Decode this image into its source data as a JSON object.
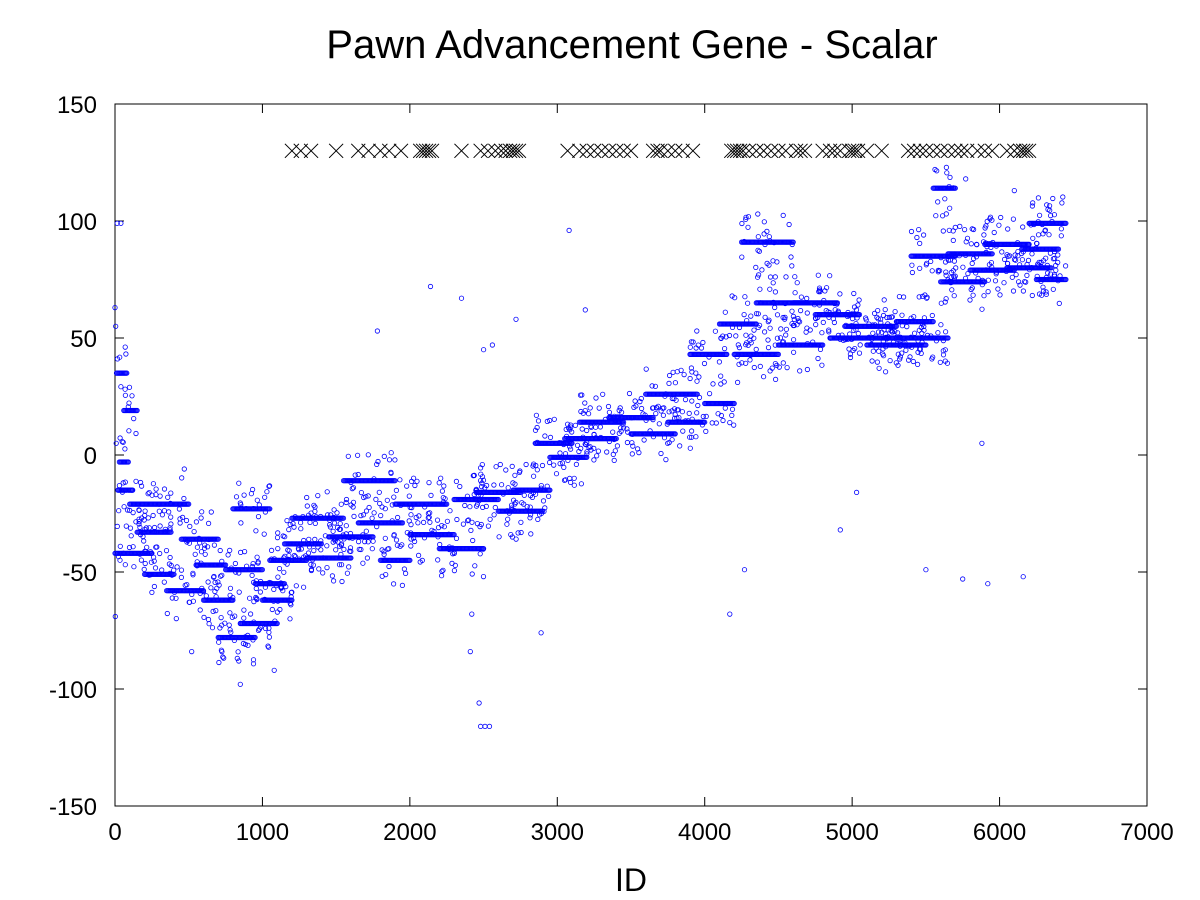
{
  "chart_data": {
    "type": "scatter",
    "title": "Pawn Advancement Gene - Scalar",
    "xlabel": "ID",
    "ylabel": "",
    "xlim": [
      0,
      7000
    ],
    "ylim": [
      -150,
      150
    ],
    "xticks": [
      0,
      1000,
      2000,
      3000,
      4000,
      5000,
      6000,
      7000
    ],
    "yticks": [
      -150,
      -100,
      -50,
      0,
      50,
      100,
      150
    ],
    "xtick_labels": [
      "0",
      "1000",
      "2000",
      "3000",
      "4000",
      "5000",
      "6000",
      "7000"
    ],
    "ytick_labels": [
      "-150",
      "-100",
      "-50",
      "0",
      "50",
      "100",
      "150"
    ],
    "grid": false,
    "legend": "none",
    "colors": {
      "points": "#0000ff",
      "markers": "#000000"
    },
    "series": [
      {
        "marker": "circle",
        "color": "#0000ff",
        "segments": [
          {
            "x0": 0,
            "x1": 60,
            "y": -42
          },
          {
            "x0": 20,
            "x1": 120,
            "y": -15
          },
          {
            "x0": 10,
            "x1": 80,
            "y": 35
          },
          {
            "x0": 60,
            "x1": 150,
            "y": 19
          },
          {
            "x0": 30,
            "x1": 90,
            "y": -3
          },
          {
            "x0": 60,
            "x1": 250,
            "y": -42
          },
          {
            "x0": 100,
            "x1": 300,
            "y": -21
          },
          {
            "x0": 200,
            "x1": 400,
            "y": -51
          },
          {
            "x0": 150,
            "x1": 380,
            "y": -33
          },
          {
            "x0": 300,
            "x1": 500,
            "y": -21
          },
          {
            "x0": 350,
            "x1": 600,
            "y": -58
          },
          {
            "x0": 450,
            "x1": 700,
            "y": -36
          },
          {
            "x0": 550,
            "x1": 750,
            "y": -47
          },
          {
            "x0": 600,
            "x1": 800,
            "y": -62
          },
          {
            "x0": 700,
            "x1": 950,
            "y": -78
          },
          {
            "x0": 750,
            "x1": 1000,
            "y": -49
          },
          {
            "x0": 800,
            "x1": 1050,
            "y": -23
          },
          {
            "x0": 850,
            "x1": 1100,
            "y": -72
          },
          {
            "x0": 950,
            "x1": 1150,
            "y": -55
          },
          {
            "x0": 1000,
            "x1": 1200,
            "y": -62
          },
          {
            "x0": 1050,
            "x1": 1300,
            "y": -45
          },
          {
            "x0": 1150,
            "x1": 1400,
            "y": -38
          },
          {
            "x0": 1200,
            "x1": 1550,
            "y": -27
          },
          {
            "x0": 1300,
            "x1": 1600,
            "y": -44
          },
          {
            "x0": 1450,
            "x1": 1750,
            "y": -35
          },
          {
            "x0": 1550,
            "x1": 1900,
            "y": -11
          },
          {
            "x0": 1650,
            "x1": 1950,
            "y": -29
          },
          {
            "x0": 1800,
            "x1": 2000,
            "y": -45
          },
          {
            "x0": 1900,
            "x1": 2250,
            "y": -21
          },
          {
            "x0": 2000,
            "x1": 2300,
            "y": -34
          },
          {
            "x0": 2200,
            "x1": 2500,
            "y": -40
          },
          {
            "x0": 2300,
            "x1": 2600,
            "y": -19
          },
          {
            "x0": 2450,
            "x1": 2750,
            "y": -16
          },
          {
            "x0": 2600,
            "x1": 2900,
            "y": -24
          },
          {
            "x0": 2700,
            "x1": 2950,
            "y": -15
          },
          {
            "x0": 2850,
            "x1": 3100,
            "y": 5
          },
          {
            "x0": 2950,
            "x1": 3200,
            "y": -1
          },
          {
            "x0": 3050,
            "x1": 3400,
            "y": 7
          },
          {
            "x0": 3150,
            "x1": 3450,
            "y": 14
          },
          {
            "x0": 3350,
            "x1": 3650,
            "y": 16
          },
          {
            "x0": 3500,
            "x1": 3800,
            "y": 9
          },
          {
            "x0": 3600,
            "x1": 3950,
            "y": 26
          },
          {
            "x0": 3750,
            "x1": 4000,
            "y": 14
          },
          {
            "x0": 3900,
            "x1": 4150,
            "y": 43
          },
          {
            "x0": 4000,
            "x1": 4200,
            "y": 22
          },
          {
            "x0": 4100,
            "x1": 4350,
            "y": 56
          },
          {
            "x0": 4200,
            "x1": 4500,
            "y": 43
          },
          {
            "x0": 4250,
            "x1": 4600,
            "y": 91
          },
          {
            "x0": 4350,
            "x1": 4700,
            "y": 65
          },
          {
            "x0": 4500,
            "x1": 4800,
            "y": 47
          },
          {
            "x0": 4600,
            "x1": 4900,
            "y": 65
          },
          {
            "x0": 4750,
            "x1": 5050,
            "y": 60
          },
          {
            "x0": 4850,
            "x1": 5200,
            "y": 50
          },
          {
            "x0": 4950,
            "x1": 5300,
            "y": 55
          },
          {
            "x0": 5100,
            "x1": 5500,
            "y": 47
          },
          {
            "x0": 5200,
            "x1": 5650,
            "y": 50
          },
          {
            "x0": 5300,
            "x1": 5550,
            "y": 57
          },
          {
            "x0": 5400,
            "x1": 5700,
            "y": 85
          },
          {
            "x0": 5550,
            "x1": 5700,
            "y": 114
          },
          {
            "x0": 5600,
            "x1": 5900,
            "y": 74
          },
          {
            "x0": 5650,
            "x1": 5950,
            "y": 86
          },
          {
            "x0": 5800,
            "x1": 6100,
            "y": 79
          },
          {
            "x0": 5900,
            "x1": 6200,
            "y": 90
          },
          {
            "x0": 6050,
            "x1": 6350,
            "y": 80
          },
          {
            "x0": 6150,
            "x1": 6400,
            "y": 88
          },
          {
            "x0": 6200,
            "x1": 6450,
            "y": 99
          },
          {
            "x0": 6250,
            "x1": 6450,
            "y": 75
          }
        ],
        "outliers": [
          {
            "x": 0,
            "y": 63
          },
          {
            "x": 5,
            "y": 55
          },
          {
            "x": 15,
            "y": 99
          },
          {
            "x": 40,
            "y": 99
          },
          {
            "x": 2,
            "y": -69
          },
          {
            "x": 8,
            "y": 5
          },
          {
            "x": 470,
            "y": -6
          },
          {
            "x": 520,
            "y": -84
          },
          {
            "x": 850,
            "y": -98
          },
          {
            "x": 1080,
            "y": -92
          },
          {
            "x": 1780,
            "y": 53
          },
          {
            "x": 2140,
            "y": 72
          },
          {
            "x": 2350,
            "y": 67
          },
          {
            "x": 2470,
            "y": -106
          },
          {
            "x": 2480,
            "y": -116
          },
          {
            "x": 2510,
            "y": -116
          },
          {
            "x": 2540,
            "y": -116
          },
          {
            "x": 2410,
            "y": -84
          },
          {
            "x": 2420,
            "y": -68
          },
          {
            "x": 2500,
            "y": 45
          },
          {
            "x": 2560,
            "y": 47
          },
          {
            "x": 2720,
            "y": 58
          },
          {
            "x": 2890,
            "y": -76
          },
          {
            "x": 3080,
            "y": 96
          },
          {
            "x": 3190,
            "y": 62
          },
          {
            "x": 4170,
            "y": -68
          },
          {
            "x": 4270,
            "y": -49
          },
          {
            "x": 4360,
            "y": 103
          },
          {
            "x": 4920,
            "y": -32
          },
          {
            "x": 5030,
            "y": -16
          },
          {
            "x": 5500,
            "y": -49
          },
          {
            "x": 5750,
            "y": -53
          },
          {
            "x": 5920,
            "y": -55
          },
          {
            "x": 6160,
            "y": -52
          },
          {
            "x": 5770,
            "y": 118
          },
          {
            "x": 6100,
            "y": 113
          },
          {
            "x": 5880,
            "y": 5
          }
        ]
      },
      {
        "marker": "cross",
        "color": "#000000",
        "y": 130,
        "x": [
          1200,
          1260,
          1330,
          1500,
          1650,
          1720,
          1800,
          1860,
          1940,
          2070,
          2090,
          2110,
          2130,
          2150,
          2350,
          2480,
          2530,
          2580,
          2620,
          2650,
          2680,
          2700,
          2720,
          2740,
          3070,
          3150,
          3200,
          3250,
          3300,
          3350,
          3400,
          3450,
          3500,
          3650,
          3680,
          3700,
          3750,
          3800,
          3850,
          3920,
          4180,
          4200,
          4220,
          4240,
          4260,
          4300,
          4350,
          4400,
          4450,
          4500,
          4550,
          4620,
          4650,
          4680,
          4800,
          4850,
          4880,
          4920,
          4980,
          5000,
          5020,
          5040,
          5100,
          5200,
          5380,
          5420,
          5460,
          5500,
          5550,
          5600,
          5650,
          5700,
          5740,
          5780,
          5850,
          5900,
          5950,
          6050,
          6100,
          6140,
          6160,
          6180,
          6200
        ]
      }
    ]
  }
}
